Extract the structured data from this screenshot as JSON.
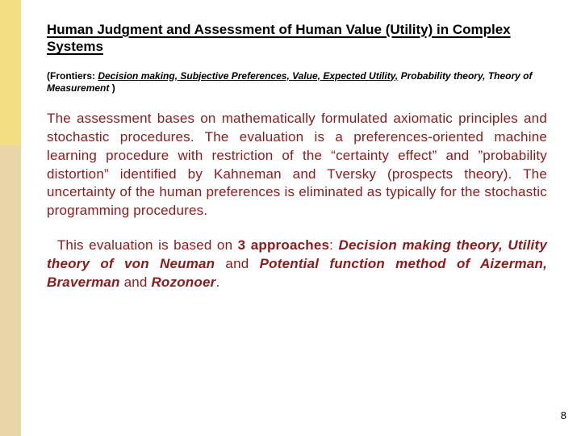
{
  "accent": {
    "top_color": "#f3de82",
    "bottom_color": "#e8d6a8"
  },
  "title": "Human Judgment and Assessment of Human Value (Utility) in Complex Systems",
  "frontiers": {
    "prefix": "(Frontiers: ",
    "italic_underline": "Decision making, Subjective Preferences, Value, Expected Utility,",
    "italic_plain": " Probability theory, Theory of Measurement",
    "suffix": " )"
  },
  "para1": "The assessment bases on mathematically formulated axiomatic principles and stochastic procedures. The evaluation is a preferences-oriented machine learning procedure with restriction of the “certainty effect” and ”probability distortion” identified by Kahneman and Tversky (prospects theory). The uncertainty of the human preferences is eliminated as typically for the stochastic programming procedures.",
  "para2": {
    "indent": "  ",
    "lead": "This evaluation is based on ",
    "bold1": "3 approaches",
    "after_bold1": ": ",
    "bi1": "Decision making theory, Utility theory of von Neuman",
    "mid": " and ",
    "bi2": "Potential function method of Aizerman, Braverman",
    "mid2": " and ",
    "bi3": "Rozonoer",
    "tail": "."
  },
  "page_number": "8",
  "colors": {
    "body_text": "#8b1a1a",
    "title_text": "#000000"
  },
  "fontsize": {
    "title": 17,
    "body": 17,
    "frontiers": 12,
    "page_num": 13
  }
}
